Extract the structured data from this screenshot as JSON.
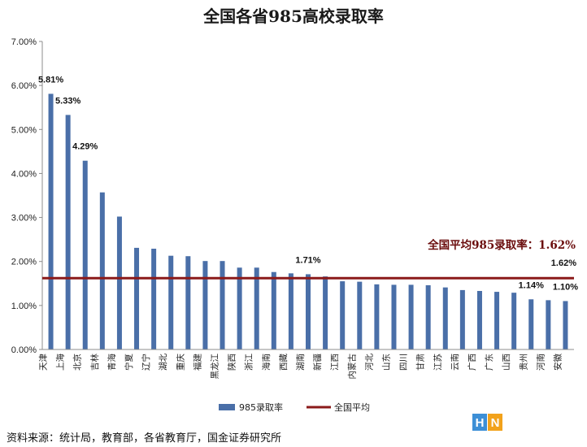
{
  "chart_data": {
    "type": "bar",
    "title": "全国各省985高校录取率",
    "categories": [
      "天津",
      "上海",
      "北京",
      "吉林",
      "青海",
      "宁夏",
      "辽宁",
      "湖北",
      "重庆",
      "福建",
      "黑龙江",
      "陕西",
      "浙江",
      "海南",
      "西藏",
      "湖南",
      "新疆",
      "江西",
      "内蒙古",
      "河北",
      "山东",
      "四川",
      "甘肃",
      "江苏",
      "云南",
      "广西",
      "广东",
      "山西",
      "贵州",
      "河南",
      "安徽"
    ],
    "series": [
      {
        "name": "985录取率",
        "values": [
          5.81,
          5.33,
          4.29,
          3.57,
          3.02,
          2.31,
          2.29,
          2.13,
          2.12,
          2.01,
          2.01,
          1.86,
          1.86,
          1.76,
          1.73,
          1.71,
          1.66,
          1.55,
          1.54,
          1.48,
          1.47,
          1.47,
          1.46,
          1.41,
          1.35,
          1.33,
          1.31,
          1.29,
          1.14,
          1.12,
          1.1
        ],
        "color": "#4a6fa8"
      },
      {
        "name": "全国平均",
        "type": "line",
        "value": 1.62,
        "color": "#8b1a1a"
      }
    ],
    "data_labels": [
      {
        "index": 0,
        "text": "5.81%"
      },
      {
        "index": 1,
        "text": "5.33%"
      },
      {
        "index": 2,
        "text": "4.29%"
      },
      {
        "index": 15,
        "text": "1.71%"
      },
      {
        "index": 28,
        "text": "1.14%"
      },
      {
        "index": 30,
        "text": "1.10%"
      }
    ],
    "avg_label": "1.62%",
    "annotation": "全国平均985录取率：1.62%",
    "yticks": [
      "0.00%",
      "1.00%",
      "2.00%",
      "3.00%",
      "4.00%",
      "5.00%",
      "6.00%",
      "7.00%"
    ],
    "ylim": [
      0,
      7
    ],
    "grid": false,
    "legend_position": "bottom"
  },
  "source_note": "资料来源：统计局，教育部，各省教育厅，国金证券研究所",
  "logo": {
    "letters": [
      "H",
      "N"
    ]
  }
}
